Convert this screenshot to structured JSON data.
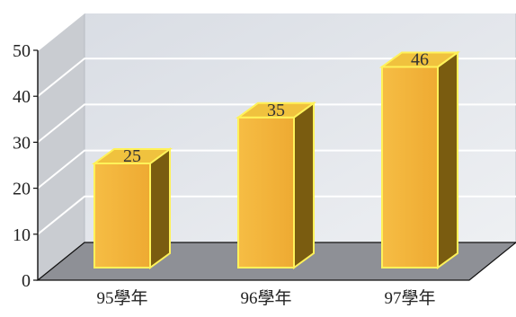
{
  "chart_data": {
    "type": "bar",
    "categories": [
      "95學年",
      "96學年",
      "97學年"
    ],
    "values": [
      25,
      35,
      46
    ],
    "data_labels": [
      "25",
      "35",
      "46"
    ],
    "yticks": [
      "0",
      "10",
      "20",
      "30",
      "40",
      "50"
    ],
    "ylim": [
      0,
      50
    ],
    "grid": true,
    "three_d": true,
    "colors": {
      "bar_front": "#f4b43c",
      "bar_side": "#7a5c10",
      "bar_top": "#f0c23e",
      "bar_edge": "#fff25a",
      "back_wall": "#e6e9ee",
      "side_wall": "#c9ccd1",
      "floor": "#8e9096",
      "gridline": "#ffffff"
    }
  }
}
